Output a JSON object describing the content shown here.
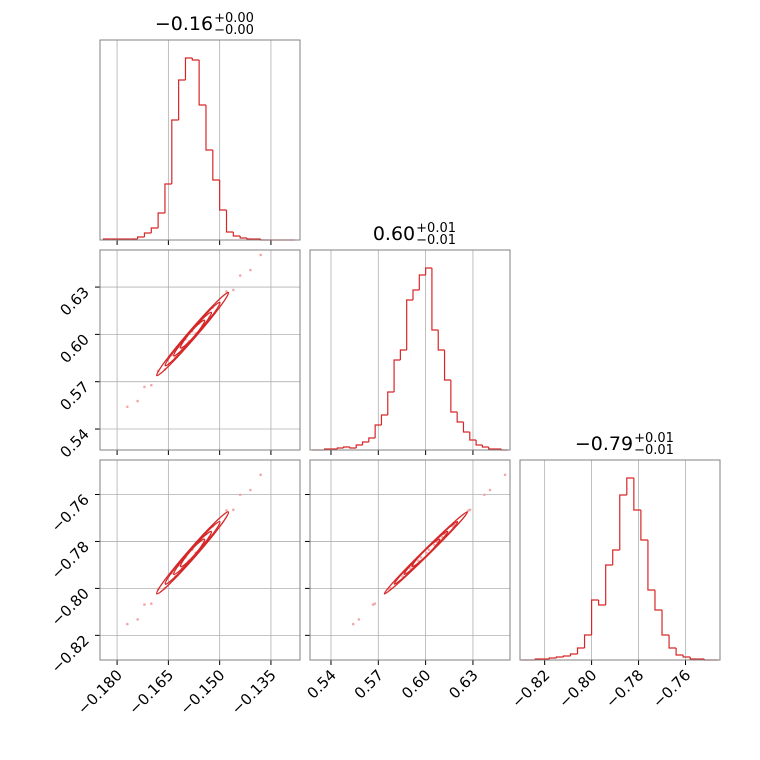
{
  "chart_data": {
    "type": "corner",
    "color": "#d62728",
    "point_color": "#f4a6a6",
    "grid": true,
    "titles": [
      {
        "median": "−0.16",
        "upper": "+0.00",
        "lower": "−0.00"
      },
      {
        "median": "0.60",
        "upper": "+0.01",
        "lower": "−0.01"
      },
      {
        "median": "−0.79",
        "upper": "+0.01",
        "lower": "−0.01"
      }
    ],
    "axes": [
      {
        "lim": [
          -0.185,
          -0.1265
        ],
        "ticks": [
          {
            "value": -0.18,
            "label": "−0.180"
          },
          {
            "value": -0.165,
            "label": "−0.165"
          },
          {
            "value": -0.15,
            "label": "−0.150"
          },
          {
            "value": -0.135,
            "label": "−0.135"
          }
        ]
      },
      {
        "lim": [
          0.5267,
          0.6535
        ],
        "ticks": [
          0.54,
          0.57,
          {
            "value": 0.6,
            "label": "0.60"
          },
          0.63
        ]
      },
      {
        "lim": [
          -0.8305,
          -0.7453
        ],
        "ticks": [
          {
            "value": -0.82,
            "label": "−0.82"
          },
          {
            "value": -0.8,
            "label": "−0.80"
          },
          {
            "value": -0.78,
            "label": "−0.78"
          },
          {
            "value": -0.76,
            "label": "−0.76"
          }
        ]
      }
    ],
    "histograms": [
      {
        "ylim": [
          0,
          200
        ],
        "bins": [
          -0.184,
          -0.182,
          -0.18,
          -0.178,
          -0.176,
          -0.174,
          -0.172,
          -0.17,
          -0.168,
          -0.166,
          -0.164,
          -0.162,
          -0.16,
          -0.158,
          -0.156,
          -0.154,
          -0.152,
          -0.15,
          -0.148,
          -0.146,
          -0.144,
          -0.142,
          -0.14,
          -0.138,
          -0.136,
          -0.134,
          -0.132,
          -0.13,
          -0.128
        ],
        "counts": [
          1,
          1,
          1,
          1,
          1,
          3,
          7,
          12,
          27,
          56,
          120,
          160,
          182,
          180,
          135,
          90,
          60,
          30,
          8,
          4,
          2,
          1,
          1,
          0,
          0,
          0,
          0,
          0
        ]
      },
      {
        "ylim": [
          0,
          200
        ],
        "bins": [
          0.528,
          0.532,
          0.536,
          0.54,
          0.544,
          0.548,
          0.552,
          0.556,
          0.56,
          0.564,
          0.568,
          0.572,
          0.576,
          0.58,
          0.584,
          0.588,
          0.592,
          0.596,
          0.6,
          0.604,
          0.608,
          0.612,
          0.616,
          0.62,
          0.624,
          0.628,
          0.632,
          0.636,
          0.64,
          0.644,
          0.648,
          0.652
        ],
        "counts": [
          0,
          0,
          1,
          1,
          2,
          3,
          2,
          5,
          8,
          12,
          25,
          35,
          58,
          90,
          100,
          150,
          160,
          175,
          182,
          120,
          100,
          70,
          38,
          28,
          18,
          10,
          5,
          3,
          1,
          1,
          0
        ]
      },
      {
        "ylim": [
          0,
          200
        ],
        "bins": [
          -0.83,
          -0.827,
          -0.824,
          -0.821,
          -0.818,
          -0.815,
          -0.812,
          -0.809,
          -0.806,
          -0.803,
          -0.8,
          -0.797,
          -0.794,
          -0.791,
          -0.788,
          -0.785,
          -0.782,
          -0.779,
          -0.776,
          -0.773,
          -0.77,
          -0.767,
          -0.764,
          -0.761,
          -0.758,
          -0.755,
          -0.752,
          -0.749,
          -0.746
        ],
        "counts": [
          0,
          0,
          1,
          1,
          2,
          3,
          4,
          6,
          12,
          25,
          60,
          55,
          95,
          110,
          165,
          182,
          150,
          120,
          70,
          50,
          25,
          12,
          5,
          3,
          1,
          1,
          0,
          0
        ]
      }
    ],
    "samples": [
      [
        -0.177,
        -0.174,
        -0.172,
        -0.17,
        -0.168,
        -0.166,
        -0.164,
        -0.163,
        -0.162,
        -0.161,
        -0.16,
        -0.159,
        -0.158,
        -0.157,
        -0.156,
        -0.155,
        -0.154,
        -0.153,
        -0.152,
        -0.15,
        -0.148,
        -0.146,
        -0.144,
        -0.141,
        -0.138
      ],
      [
        0.5541,
        0.5577,
        0.5667,
        0.5678,
        0.5768,
        0.5778,
        0.5869,
        0.5854,
        0.5919,
        0.5904,
        0.597,
        0.5955,
        0.602,
        0.6005,
        0.607,
        0.6056,
        0.6121,
        0.6106,
        0.6171,
        0.6182,
        0.6272,
        0.6282,
        0.6373,
        0.6408,
        0.6504
      ],
      [
        -0.8152,
        -0.8132,
        -0.8069,
        -0.8065,
        -0.8002,
        -0.7999,
        -0.7935,
        -0.7949,
        -0.7902,
        -0.7915,
        -0.7868,
        -0.7882,
        -0.7835,
        -0.7848,
        -0.7802,
        -0.7815,
        -0.7768,
        -0.7782,
        -0.7735,
        -0.7731,
        -0.7668,
        -0.7665,
        -0.7601,
        -0.7581,
        -0.7516
      ]
    ]
  }
}
